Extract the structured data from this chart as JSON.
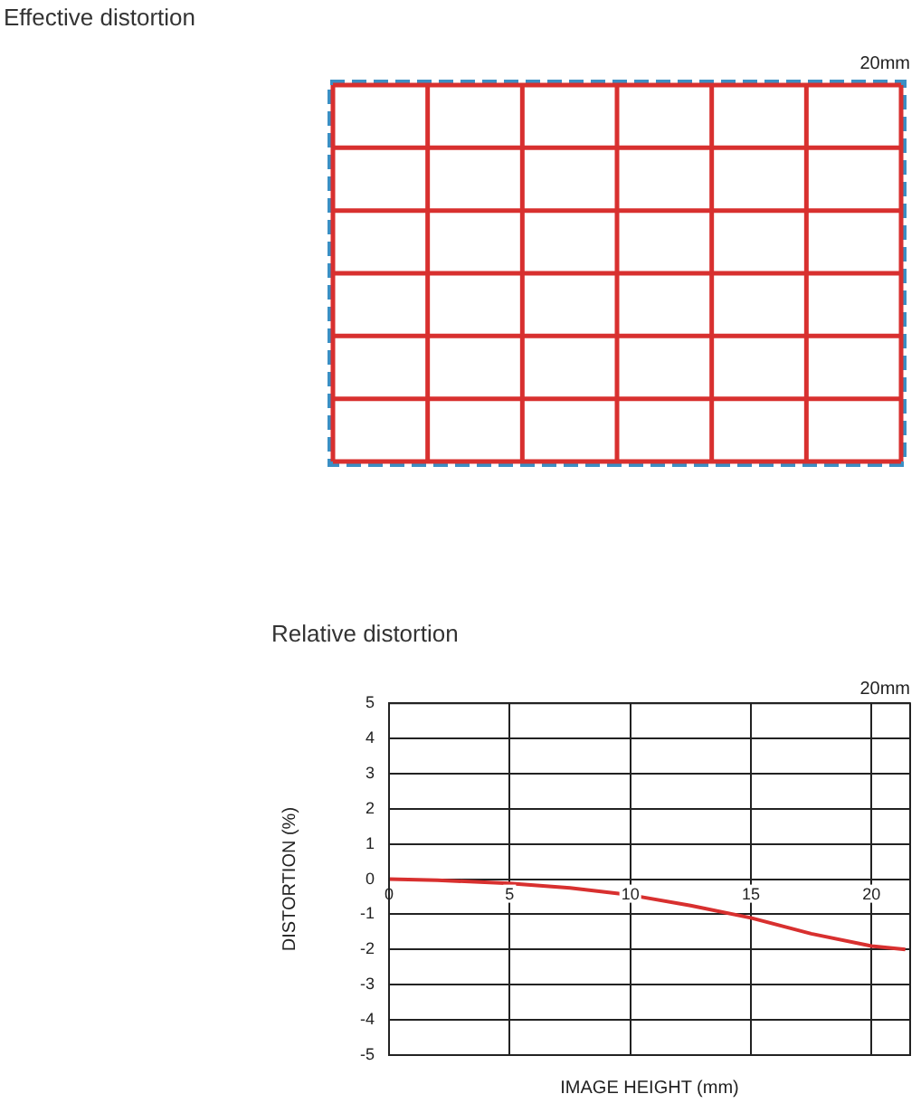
{
  "chart_data": [
    {
      "type": "other",
      "title": "Effective distortion",
      "annotations": [
        "20mm"
      ]
    },
    {
      "type": "line",
      "title": "Relative distortion",
      "xlabel": "IMAGE HEIGHT (mm)",
      "ylabel": "DISTORTION (%)",
      "annotations": [
        "20mm"
      ],
      "series": [
        {
          "color": "#d8302f",
          "x": [
            0,
            2,
            5,
            7.5,
            10,
            12.5,
            15,
            17.5,
            20,
            21.4
          ],
          "values": [
            0,
            -0.03,
            -0.12,
            -0.25,
            -0.45,
            -0.75,
            -1.1,
            -1.55,
            -1.9,
            -2.0
          ]
        }
      ],
      "xlim": [
        0,
        21.6
      ],
      "xticks": [
        0,
        5,
        10,
        15,
        20
      ],
      "ylim": [
        -5,
        5
      ],
      "yticks": [
        -5,
        -4,
        -3,
        -2,
        -1,
        0,
        1,
        2,
        3,
        4,
        5
      ],
      "grid": true,
      "marker": "none",
      "line_style": "solid"
    }
  ]
}
